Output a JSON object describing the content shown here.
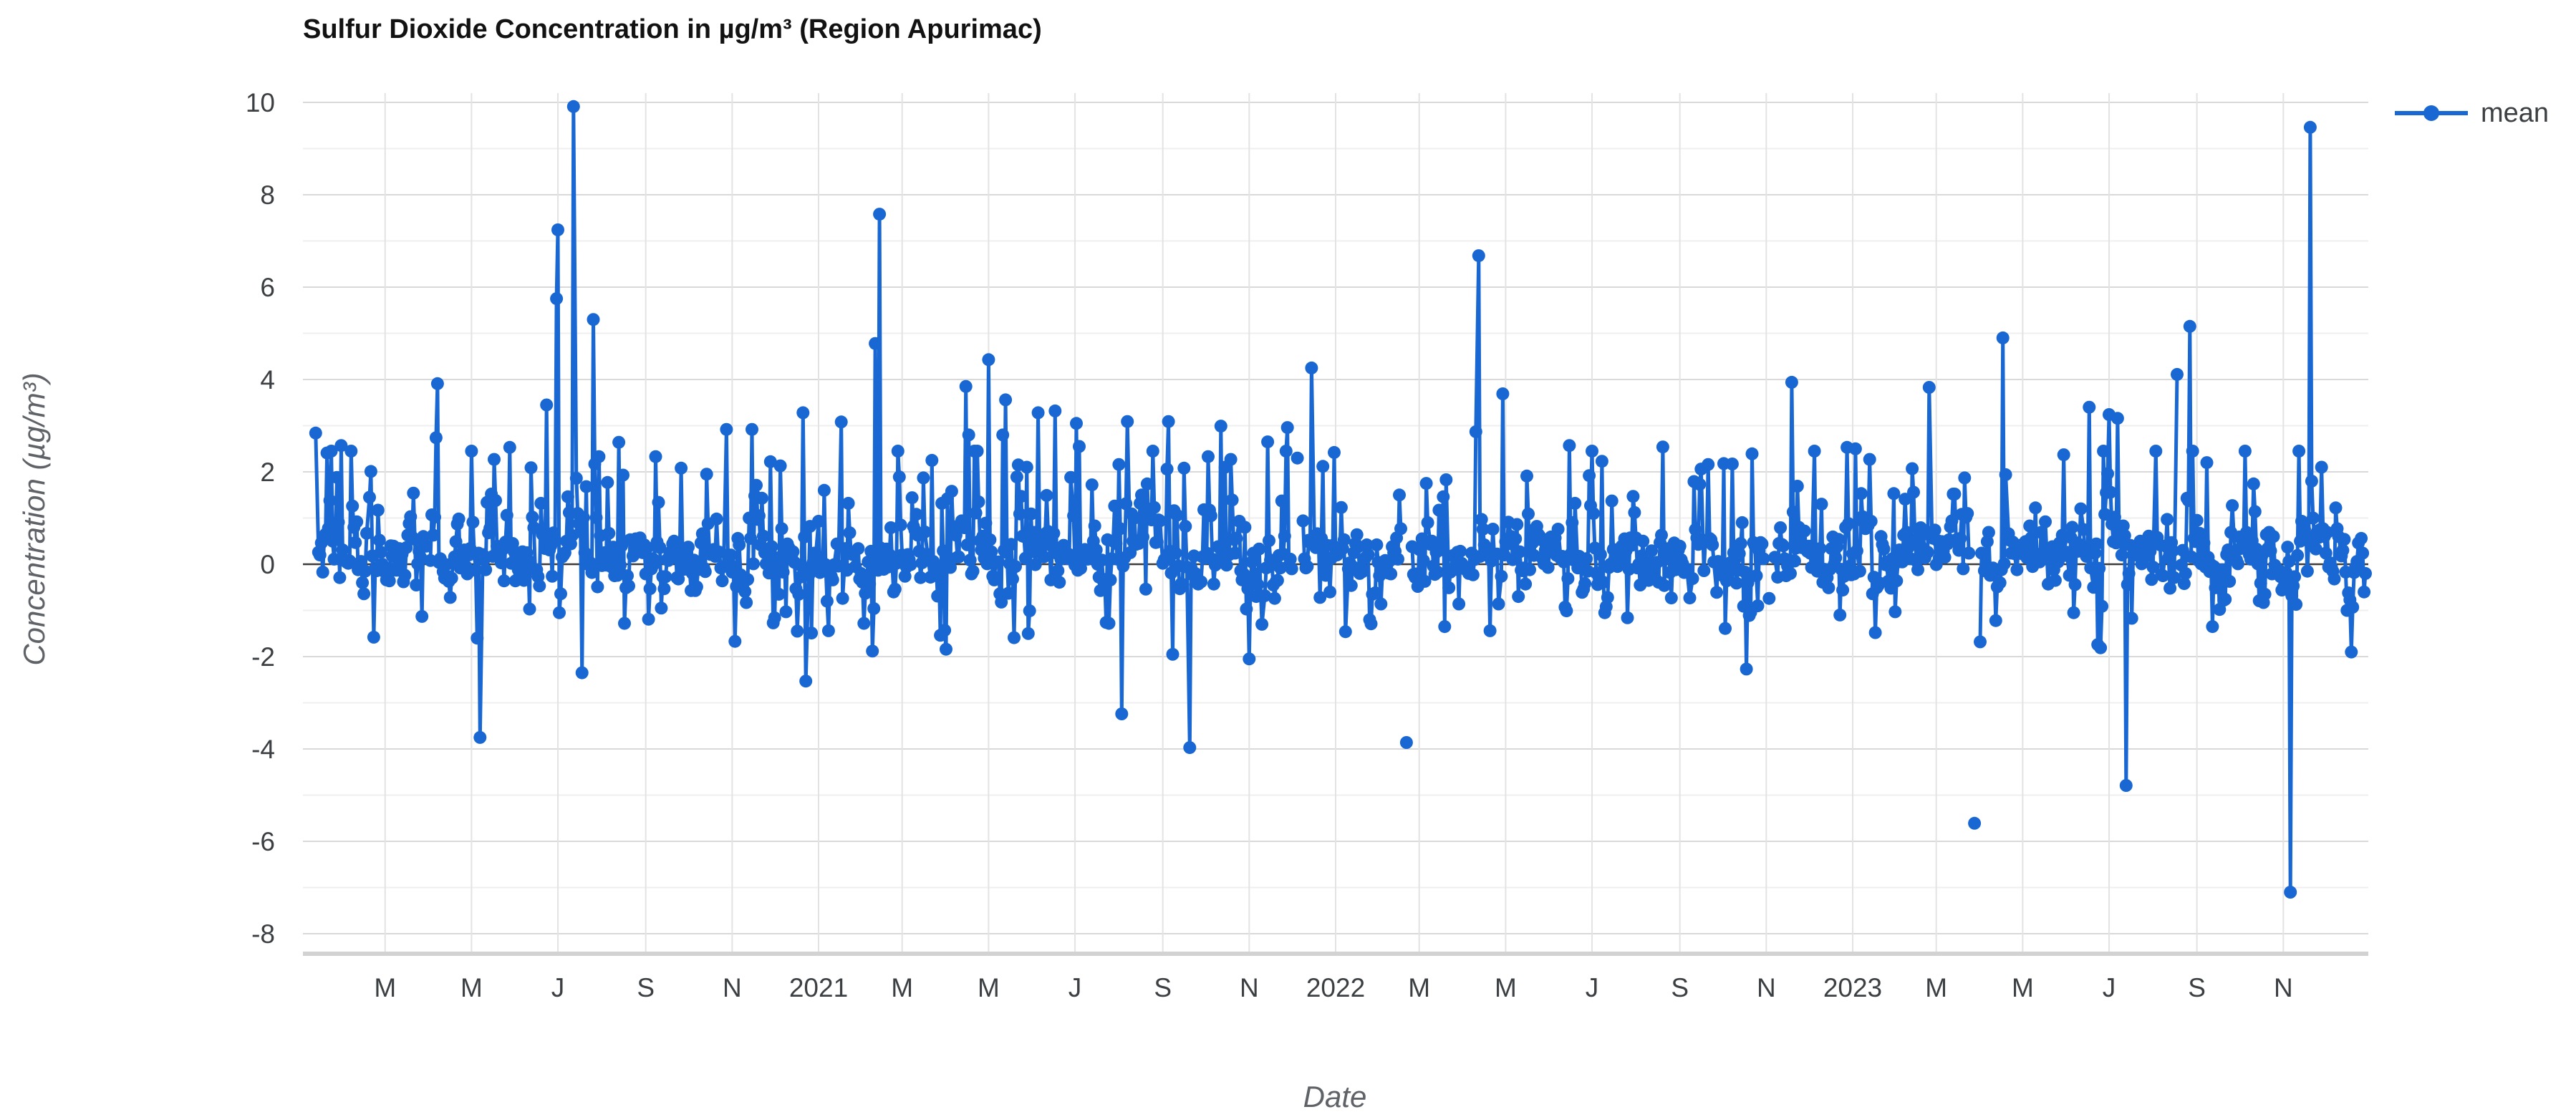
{
  "title": "Sulfur Dioxide Concentration in µg/m³ (Region Apurimac)",
  "axes": {
    "x_title": "Date",
    "y_title": "Concentration (µg/m³)"
  },
  "legend": {
    "label": "mean"
  },
  "colors": {
    "series": "#1967d2",
    "grid_major": "#d9d9d9",
    "grid_minor": "#efefef",
    "grid_vertical": "#e3e3e3",
    "zero_line": "#3c3c3c",
    "axis_line": "#d2d2d2",
    "tick_text": "#3c4043",
    "title_text": "#121212",
    "axis_title_text": "#5f6368",
    "background": "#ffffff"
  },
  "chart_data": {
    "type": "line",
    "title": "Sulfur Dioxide Concentration in µg/m³ (Region Apurimac)",
    "xlabel": "Date",
    "ylabel": "Concentration (µg/m³)",
    "series_name": "mean",
    "legend_position": "right",
    "grid": true,
    "marker": "circle",
    "x_start": "2020-01-03",
    "x_end": "2023-12-31",
    "data_start": "2020-01-12",
    "data_end": "2023-12-29",
    "y_min_grid": -8,
    "y_max_grid": 10,
    "y_tick_step": 2,
    "y_ticks": [
      10,
      8,
      6,
      4,
      2,
      0,
      -2,
      -4,
      -6,
      -8
    ],
    "x_ticks": [
      {
        "date": "2020-03-01",
        "label": "M"
      },
      {
        "date": "2020-05-01",
        "label": "M"
      },
      {
        "date": "2020-07-01",
        "label": "J"
      },
      {
        "date": "2020-09-01",
        "label": "S"
      },
      {
        "date": "2020-11-01",
        "label": "N"
      },
      {
        "date": "2021-01-01",
        "label": "2021"
      },
      {
        "date": "2021-03-01",
        "label": "M"
      },
      {
        "date": "2021-05-01",
        "label": "M"
      },
      {
        "date": "2021-07-01",
        "label": "J"
      },
      {
        "date": "2021-09-01",
        "label": "S"
      },
      {
        "date": "2021-11-01",
        "label": "N"
      },
      {
        "date": "2022-01-01",
        "label": "2022"
      },
      {
        "date": "2022-03-01",
        "label": "M"
      },
      {
        "date": "2022-05-01",
        "label": "M"
      },
      {
        "date": "2022-07-01",
        "label": "J"
      },
      {
        "date": "2022-09-01",
        "label": "S"
      },
      {
        "date": "2022-11-01",
        "label": "N"
      },
      {
        "date": "2023-01-01",
        "label": "2023"
      },
      {
        "date": "2023-03-01",
        "label": "M"
      },
      {
        "date": "2023-05-01",
        "label": "M"
      },
      {
        "date": "2023-07-01",
        "label": "J"
      },
      {
        "date": "2023-09-01",
        "label": "S"
      },
      {
        "date": "2023-11-01",
        "label": "N"
      }
    ],
    "notable_points": [
      [
        "2020-01-12",
        2.84
      ],
      [
        "2020-01-30",
        2.57
      ],
      [
        "2020-02-20",
        2.01
      ],
      [
        "2020-02-22",
        -1.58
      ],
      [
        "2020-04-06",
        2.74
      ],
      [
        "2020-04-07",
        3.91
      ],
      [
        "2020-05-05",
        -1.6
      ],
      [
        "2020-05-07",
        -3.75
      ],
      [
        "2020-05-28",
        2.53
      ],
      [
        "2020-06-23",
        3.45
      ],
      [
        "2020-06-30",
        5.75
      ],
      [
        "2020-07-01",
        7.24
      ],
      [
        "2020-07-12",
        9.91
      ],
      [
        "2020-07-18",
        -2.35
      ],
      [
        "2020-07-26",
        5.3
      ],
      [
        "2020-08-13",
        2.64
      ],
      [
        "2020-09-03",
        -1.19
      ],
      [
        "2020-09-08",
        2.33
      ],
      [
        "2020-09-26",
        2.08
      ],
      [
        "2020-10-28",
        2.92
      ],
      [
        "2020-11-15",
        2.92
      ],
      [
        "2020-11-28",
        2.22
      ],
      [
        "2020-12-01",
        -1.16
      ],
      [
        "2020-12-21",
        3.28
      ],
      [
        "2020-12-23",
        -2.53
      ],
      [
        "2021-01-08",
        -1.44
      ],
      [
        "2021-01-17",
        3.08
      ],
      [
        "2021-02-10",
        4.78
      ],
      [
        "2021-02-13",
        7.58
      ],
      [
        "2021-03-22",
        2.25
      ],
      [
        "2021-04-15",
        3.85
      ],
      [
        "2021-04-17",
        2.8
      ],
      [
        "2021-05-01",
        4.43
      ],
      [
        "2021-05-11",
        2.8
      ],
      [
        "2021-05-13",
        3.56
      ],
      [
        "2021-06-05",
        3.28
      ],
      [
        "2021-06-17",
        3.32
      ],
      [
        "2021-07-02",
        3.05
      ],
      [
        "2021-07-04",
        2.55
      ],
      [
        "2021-08-03",
        -3.24
      ],
      [
        "2021-08-07",
        3.09
      ],
      [
        "2021-09-05",
        3.09
      ],
      [
        "2021-09-08",
        -1.95
      ],
      [
        "2021-09-20",
        -3.97
      ],
      [
        "2021-10-12",
        2.99
      ],
      [
        "2021-11-01",
        -2.05
      ],
      [
        "2021-11-14",
        2.65
      ],
      [
        "2021-11-28",
        2.96
      ],
      [
        "2021-12-05",
        2.3
      ],
      [
        "2021-12-15",
        4.25
      ],
      [
        "2021-12-23",
        2.12
      ],
      [
        "2021-12-31",
        2.42
      ],
      [
        "2022-01-08",
        -1.46
      ],
      [
        "2022-02-20",
        -3.86
      ],
      [
        "2022-03-20",
        1.83
      ],
      [
        "2022-04-10",
        2.87
      ],
      [
        "2022-04-12",
        6.68
      ],
      [
        "2022-04-20",
        -1.44
      ],
      [
        "2022-04-29",
        3.69
      ],
      [
        "2022-06-15",
        2.57
      ],
      [
        "2022-08-20",
        2.54
      ],
      [
        "2022-09-16",
        2.06
      ],
      [
        "2022-10-03",
        -1.39
      ],
      [
        "2022-10-08",
        2.17
      ],
      [
        "2022-10-18",
        -2.27
      ],
      [
        "2022-10-22",
        2.39
      ],
      [
        "2022-11-03",
        -0.74
      ],
      [
        "2022-11-19",
        3.94
      ],
      [
        "2022-12-05",
        2.45
      ],
      [
        "2022-12-28",
        2.53
      ],
      [
        "2023-01-03",
        2.5
      ],
      [
        "2023-02-24",
        3.83
      ],
      [
        "2023-03-28",
        -5.61
      ],
      [
        "2023-04-17",
        4.9
      ],
      [
        "2023-04-19",
        1.94
      ],
      [
        "2023-05-30",
        2.37
      ],
      [
        "2023-06-17",
        3.4
      ],
      [
        "2023-07-01",
        3.24
      ],
      [
        "2023-07-07",
        3.16
      ],
      [
        "2023-07-13",
        -4.79
      ],
      [
        "2023-08-18",
        4.11
      ],
      [
        "2023-08-27",
        5.15
      ],
      [
        "2023-09-08",
        2.2
      ],
      [
        "2023-09-12",
        -1.35
      ],
      [
        "2023-11-06",
        -7.1
      ],
      [
        "2023-11-20",
        9.46
      ],
      [
        "2023-11-28",
        2.1
      ],
      [
        "2023-12-28",
        -0.6
      ]
    ],
    "isolated_points": [
      "2021-12-05",
      "2022-02-20",
      "2022-11-03",
      "2023-03-28"
    ],
    "noise": {
      "description": "dense daily values fluctuating around 0 (roughly -0.8 to +1.2) with occasional 1-2.5 bumps",
      "daily": true,
      "mean": 0.08,
      "sd": 0.34,
      "autocorr": 0.35,
      "spike_prob": 0.09,
      "dip_prob": 0.06,
      "drop_prob": 0.055,
      "clip_low": -1.9,
      "clip_high": 2.45,
      "seed": 7
    }
  }
}
